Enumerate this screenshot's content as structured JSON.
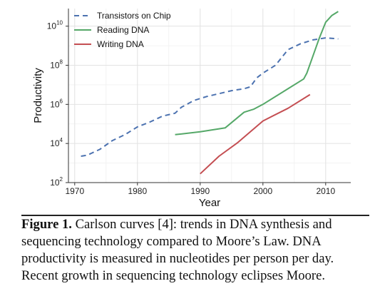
{
  "chart_data": {
    "type": "line",
    "xlabel": "Year",
    "ylabel": "Productivity",
    "x_ticks": [
      1970,
      1980,
      1990,
      2000,
      2010
    ],
    "y_ticks": [
      {
        "base": "10",
        "exp": "2"
      },
      {
        "base": "10",
        "exp": "4"
      },
      {
        "base": "10",
        "exp": "6"
      },
      {
        "base": "10",
        "exp": "8"
      },
      {
        "base": "10",
        "exp": "10"
      }
    ],
    "xlim": [
      1969,
      2014
    ],
    "ylim_log10": [
      2,
      10.9
    ],
    "y_scale": "log10",
    "grid": true,
    "legend_position": "top-left",
    "series": [
      {
        "name": "Transistors on Chip",
        "color": "#4c72b0",
        "style": "dashed",
        "x": [
          1971,
          1972,
          1974,
          1976,
          1978,
          1980,
          1982,
          1984,
          1986,
          1987,
          1989,
          1991,
          1993,
          1995,
          1997,
          1998,
          1999,
          2000,
          2002,
          2003,
          2004,
          2006,
          2008,
          2010,
          2012
        ],
        "y_log10": [
          3.35,
          3.4,
          3.7,
          4.15,
          4.45,
          4.85,
          5.1,
          5.4,
          5.55,
          5.85,
          6.2,
          6.4,
          6.55,
          6.7,
          6.8,
          6.9,
          7.35,
          7.6,
          8.0,
          8.4,
          8.8,
          9.1,
          9.3,
          9.4,
          9.35
        ]
      },
      {
        "name": "Reading DNA",
        "color": "#55a868",
        "style": "solid",
        "x": [
          1986,
          1990,
          1994,
          1997,
          1998.5,
          2000,
          2004,
          2006.5,
          2007,
          2008,
          2009,
          2010,
          2011,
          2012
        ],
        "y_log10": [
          4.45,
          4.6,
          4.8,
          5.6,
          5.75,
          6.0,
          6.8,
          7.3,
          7.6,
          8.5,
          9.4,
          10.2,
          10.55,
          10.75
        ]
      },
      {
        "name": "Writing DNA",
        "color": "#c44e52",
        "style": "solid",
        "x": [
          1990,
          1993,
          1996,
          2000,
          2004,
          2007.5
        ],
        "y_log10": [
          2.45,
          3.35,
          4.05,
          5.15,
          5.8,
          6.5
        ]
      }
    ]
  },
  "caption": {
    "label": "Figure 1.",
    "text": " Carlson curves [4]: trends in DNA synthesis and sequencing technology compared to Moore’s Law. DNA productivity is measured in nucleotides per person per day. Recent growth in sequencing technology eclipses Moore."
  }
}
